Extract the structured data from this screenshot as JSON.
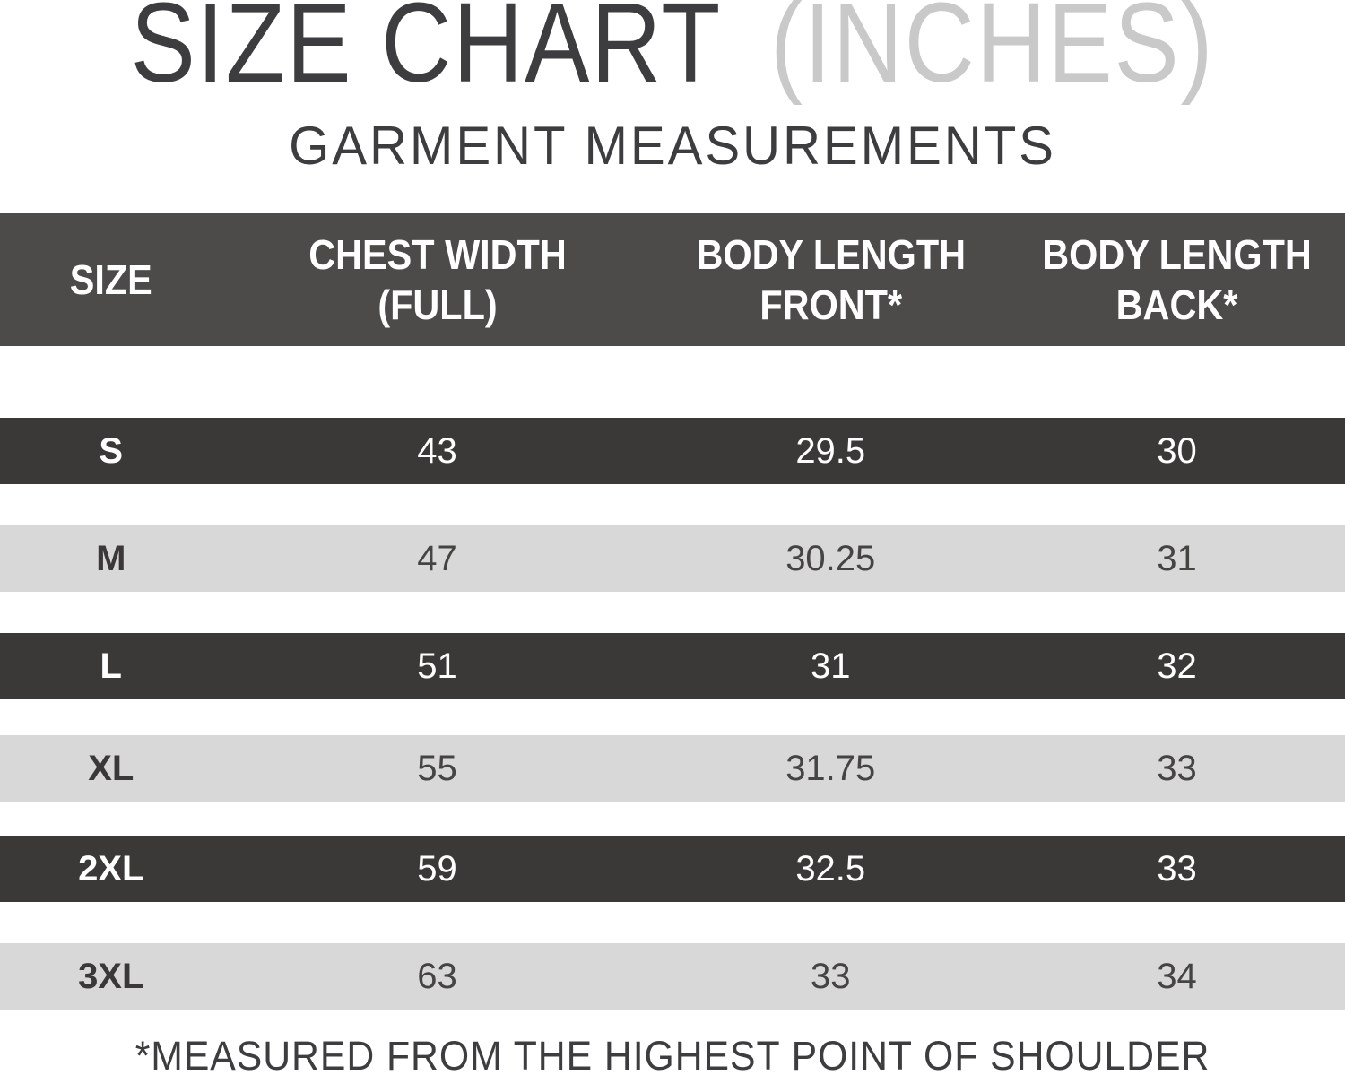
{
  "title": {
    "main": "SIZE CHART",
    "unit": "(INCHES)"
  },
  "subtitle": "GARMENT MEASUREMENTS",
  "table": {
    "columns": [
      {
        "line1": "SIZE",
        "line2": ""
      },
      {
        "line1": "CHEST WIDTH",
        "line2": "(FULL)"
      },
      {
        "line1": "BODY LENGTH",
        "line2": "FRONT*"
      },
      {
        "line1": "BODY LENGTH",
        "line2": "BACK*"
      }
    ],
    "rows": [
      {
        "size": "S",
        "chest": "43",
        "front": "29.5",
        "back": "30",
        "theme": "dark"
      },
      {
        "size": "M",
        "chest": "47",
        "front": "30.25",
        "back": "31",
        "theme": "light"
      },
      {
        "size": "L",
        "chest": "51",
        "front": "31",
        "back": "32",
        "theme": "dark"
      },
      {
        "size": "XL",
        "chest": "55",
        "front": "31.75",
        "back": "33",
        "theme": "light"
      },
      {
        "size": "2XL",
        "chest": "59",
        "front": "32.5",
        "back": "33",
        "theme": "dark"
      },
      {
        "size": "3XL",
        "chest": "63",
        "front": "33",
        "back": "34",
        "theme": "light"
      }
    ]
  },
  "footnote": "*MEASURED FROM THE HIGHEST POINT OF SHOULDER",
  "colors": {
    "header_bg": "#4c4b49",
    "dark_row_bg": "#3a3938",
    "light_row_bg": "#d8d8d8",
    "light_row_text": "#454442",
    "title_text": "#3d3c3e",
    "unit_text": "#c9c9c9",
    "white_text": "#ffffff"
  }
}
